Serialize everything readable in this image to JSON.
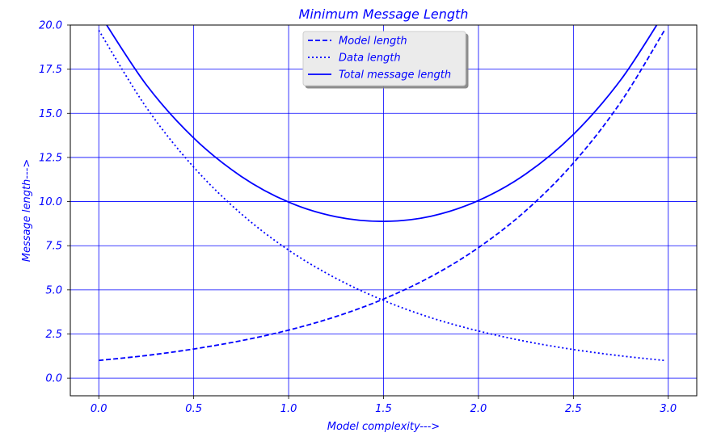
{
  "chart_data": {
    "type": "line",
    "title": "Minimum Message Length",
    "xlabel": "Model complexity--->",
    "ylabel": "Message length--->",
    "xlim": [
      -0.15,
      3.15
    ],
    "ylim": [
      -1.0,
      20.0
    ],
    "grid": true,
    "legend_position": "top-center",
    "color": "#0000ff",
    "x_ticks": [
      0.0,
      0.5,
      1.0,
      1.5,
      2.0,
      2.5,
      3.0
    ],
    "x_tick_labels": [
      "0.0",
      "0.5",
      "1.0",
      "1.5",
      "2.0",
      "2.5",
      "3.0"
    ],
    "y_ticks": [
      0.0,
      2.5,
      5.0,
      7.5,
      10.0,
      12.5,
      15.0,
      17.5,
      20.0
    ],
    "y_tick_labels": [
      "0.0",
      "2.5",
      "5.0",
      "7.5",
      "10.0",
      "12.5",
      "15.0",
      "17.5",
      "20.0"
    ],
    "series": [
      {
        "name": "Model length",
        "style": "dashed",
        "x": [
          0.0,
          0.25,
          0.5,
          0.75,
          1.0,
          1.25,
          1.5,
          1.75,
          2.0,
          2.25,
          2.5,
          2.75,
          2.98
        ],
        "y": [
          1.0,
          1.28,
          1.65,
          2.12,
          2.72,
          3.49,
          4.48,
          5.75,
          7.39,
          9.49,
          12.18,
          15.64,
          19.7
        ]
      },
      {
        "name": "Data length",
        "style": "dotted",
        "x": [
          0.0,
          0.25,
          0.5,
          0.75,
          1.0,
          1.25,
          1.5,
          1.75,
          2.0,
          2.25,
          2.5,
          2.75,
          2.98
        ],
        "y": [
          19.7,
          15.34,
          11.95,
          9.31,
          7.25,
          5.65,
          4.4,
          3.42,
          2.67,
          2.08,
          1.62,
          1.26,
          1.0
        ]
      },
      {
        "name": "Total message length",
        "style": "solid",
        "x": [
          0.0,
          0.25,
          0.5,
          0.75,
          1.0,
          1.25,
          1.5,
          1.75,
          2.0,
          2.25,
          2.5,
          2.75,
          2.98
        ],
        "y": [
          20.7,
          16.62,
          13.6,
          11.43,
          9.97,
          9.14,
          8.88,
          9.17,
          10.06,
          11.57,
          13.8,
          16.9,
          20.7
        ]
      }
    ]
  }
}
